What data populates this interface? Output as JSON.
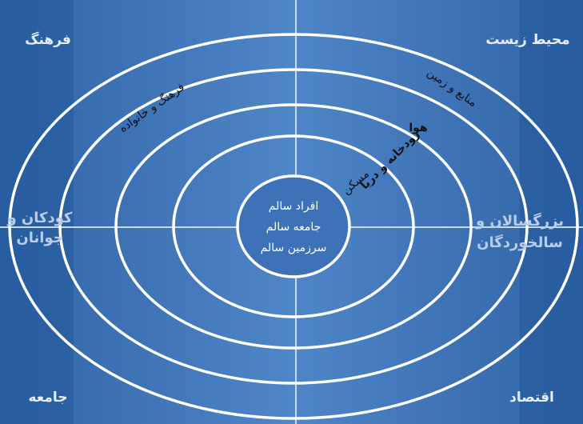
{
  "corners": {
    "top_left": "فرهنگ",
    "top_right": "محیط زیست",
    "bottom_left": "جامعه",
    "bottom_right": "اقتصاد"
  },
  "sides": {
    "left": [
      "کودکان و",
      "جوانان"
    ],
    "right": [
      "بزرگسالان و",
      "سالخوردگان"
    ]
  },
  "center": [
    "افراد سالم",
    "جامعه سالم",
    "سرزمین سالم"
  ],
  "rings": {
    "culture_family": "فرهنگ و خانواده",
    "resources_land": "منابع و زمین",
    "air": "هوا",
    "river_sea": "رودخانه و دریا",
    "housing": "مسکن"
  }
}
